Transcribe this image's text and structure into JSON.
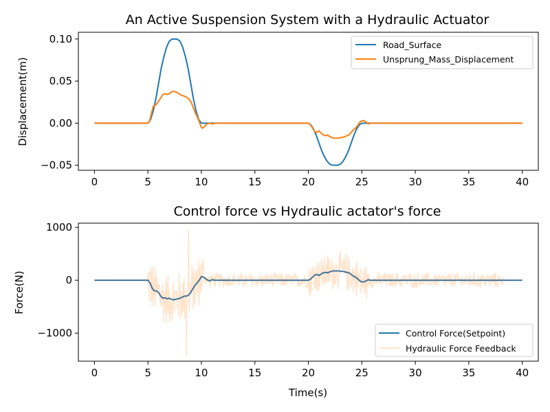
{
  "chart_data": [
    {
      "type": "line",
      "title": "An Active Suspension System with a Hydraulic Actuator",
      "xlabel": "",
      "ylabel": "Displacement(m)",
      "xlim": [
        -1.5,
        41.5
      ],
      "ylim": [
        -0.056,
        0.108
      ],
      "xticks": [
        0,
        5,
        10,
        15,
        20,
        25,
        30,
        35,
        40
      ],
      "xtick_labels": [
        "0",
        "5",
        "10",
        "15",
        "20",
        "25",
        "30",
        "35",
        "40"
      ],
      "yticks": [
        -0.05,
        0.0,
        0.05,
        0.1
      ],
      "ytick_labels": [
        "−0.05",
        "0.00",
        "0.05",
        "0.10"
      ],
      "grid": false,
      "legend_position": "top-right",
      "series": [
        {
          "name": "Road_Surface",
          "color": "#1f77b4",
          "points": [
            [
              0,
              0
            ],
            [
              5,
              0
            ],
            [
              5.25,
              0.0043
            ],
            [
              5.5,
              0.0146
            ],
            [
              5.75,
              0.0293
            ],
            [
              6,
              0.0476
            ],
            [
              6.25,
              0.0655
            ],
            [
              6.5,
              0.0794
            ],
            [
              6.75,
              0.0904
            ],
            [
              7,
              0.0974
            ],
            [
              7.25,
              0.0998
            ],
            [
              7.5,
              0.1
            ],
            [
              7.75,
              0.0998
            ],
            [
              8,
              0.0974
            ],
            [
              8.25,
              0.0904
            ],
            [
              8.5,
              0.0794
            ],
            [
              8.75,
              0.0655
            ],
            [
              9,
              0.0476
            ],
            [
              9.25,
              0.0293
            ],
            [
              9.5,
              0.0146
            ],
            [
              9.75,
              0.0043
            ],
            [
              10,
              0
            ],
            [
              20,
              0
            ],
            [
              20.25,
              -0.0022
            ],
            [
              20.5,
              -0.0073
            ],
            [
              20.75,
              -0.0147
            ],
            [
              21,
              -0.0238
            ],
            [
              21.25,
              -0.0328
            ],
            [
              21.5,
              -0.0397
            ],
            [
              21.75,
              -0.0452
            ],
            [
              22,
              -0.0487
            ],
            [
              22.25,
              -0.0499
            ],
            [
              22.5,
              -0.05
            ],
            [
              22.75,
              -0.0499
            ],
            [
              23,
              -0.0487
            ],
            [
              23.25,
              -0.0452
            ],
            [
              23.5,
              -0.0397
            ],
            [
              23.75,
              -0.0328
            ],
            [
              24,
              -0.0238
            ],
            [
              24.25,
              -0.0147
            ],
            [
              24.5,
              -0.0073
            ],
            [
              24.75,
              -0.0022
            ],
            [
              25,
              0
            ],
            [
              40,
              0
            ]
          ]
        },
        {
          "name": "Unsprung_Mass_Displacement",
          "color": "#ff7f0e",
          "points": [
            [
              0,
              0
            ],
            [
              5,
              0
            ],
            [
              5.15,
              0.002
            ],
            [
              5.3,
              0.01
            ],
            [
              5.5,
              0.02
            ],
            [
              5.75,
              0.022
            ],
            [
              6,
              0.026
            ],
            [
              6.2,
              0.03
            ],
            [
              6.4,
              0.034
            ],
            [
              6.6,
              0.035
            ],
            [
              6.8,
              0.034
            ],
            [
              7,
              0.035
            ],
            [
              7.2,
              0.037
            ],
            [
              7.4,
              0.038
            ],
            [
              7.6,
              0.037
            ],
            [
              7.8,
              0.036
            ],
            [
              8,
              0.034
            ],
            [
              8.2,
              0.033
            ],
            [
              8.4,
              0.032
            ],
            [
              8.6,
              0.031
            ],
            [
              8.8,
              0.029
            ],
            [
              9,
              0.026
            ],
            [
              9.2,
              0.02
            ],
            [
              9.4,
              0.013
            ],
            [
              9.6,
              0.008
            ],
            [
              9.8,
              0.002
            ],
            [
              9.95,
              -0.004
            ],
            [
              10.1,
              -0.006
            ],
            [
              10.3,
              -0.004
            ],
            [
              10.5,
              -0.001
            ],
            [
              10.8,
              0.0
            ],
            [
              11.0,
              -0.001
            ],
            [
              11.3,
              0.0
            ],
            [
              11.6,
              0.0
            ],
            [
              20,
              0
            ],
            [
              20.2,
              -0.002
            ],
            [
              20.4,
              -0.006
            ],
            [
              20.6,
              -0.01
            ],
            [
              20.8,
              -0.011
            ],
            [
              21.0,
              -0.009
            ],
            [
              21.2,
              -0.012
            ],
            [
              21.4,
              -0.014
            ],
            [
              21.6,
              -0.015
            ],
            [
              21.8,
              -0.014
            ],
            [
              22.0,
              -0.016
            ],
            [
              22.2,
              -0.017
            ],
            [
              22.4,
              -0.018
            ],
            [
              22.6,
              -0.0175
            ],
            [
              22.8,
              -0.018
            ],
            [
              23.0,
              -0.017
            ],
            [
              23.2,
              -0.017
            ],
            [
              23.4,
              -0.016
            ],
            [
              23.6,
              -0.015
            ],
            [
              23.8,
              -0.014
            ],
            [
              24.0,
              -0.011
            ],
            [
              24.2,
              -0.008
            ],
            [
              24.4,
              -0.006
            ],
            [
              24.6,
              -0.003
            ],
            [
              24.8,
              0.001
            ],
            [
              25.0,
              0.003
            ],
            [
              25.2,
              0.003
            ],
            [
              25.4,
              0.001
            ],
            [
              25.6,
              -0.001
            ],
            [
              25.8,
              0.0
            ],
            [
              40,
              0
            ]
          ]
        }
      ]
    },
    {
      "type": "line",
      "title": "Control force vs Hydraulic actator's force",
      "xlabel": "Time(s)",
      "ylabel": "Force(N)",
      "xlim": [
        -1.5,
        41.5
      ],
      "ylim": [
        -1530,
        1080
      ],
      "xticks": [
        0,
        5,
        10,
        15,
        20,
        25,
        30,
        35,
        40
      ],
      "xtick_labels": [
        "0",
        "5",
        "10",
        "15",
        "20",
        "25",
        "30",
        "35",
        "40"
      ],
      "yticks": [
        -1000,
        0,
        1000
      ],
      "ytick_labels": [
        "−1000",
        "0",
        "1000"
      ],
      "grid": false,
      "legend_position": "lower-right",
      "series": [
        {
          "name": "Control Force(Setpoint)",
          "color": "#1f77b4",
          "points": [
            [
              0,
              0
            ],
            [
              5,
              0
            ],
            [
              5.2,
              -50
            ],
            [
              5.4,
              -150
            ],
            [
              5.6,
              -200
            ],
            [
              5.8,
              -200
            ],
            [
              6.0,
              -230
            ],
            [
              6.2,
              -300
            ],
            [
              6.4,
              -340
            ],
            [
              6.6,
              -330
            ],
            [
              6.8,
              -350
            ],
            [
              7.0,
              -340
            ],
            [
              7.2,
              -360
            ],
            [
              7.4,
              -370
            ],
            [
              7.6,
              -360
            ],
            [
              7.8,
              -350
            ],
            [
              8.0,
              -340
            ],
            [
              8.2,
              -320
            ],
            [
              8.4,
              -300
            ],
            [
              8.6,
              -300
            ],
            [
              8.8,
              -280
            ],
            [
              9.0,
              -230
            ],
            [
              9.2,
              -160
            ],
            [
              9.4,
              -100
            ],
            [
              9.6,
              -50
            ],
            [
              9.8,
              0
            ],
            [
              10.0,
              70
            ],
            [
              10.2,
              60
            ],
            [
              10.4,
              30
            ],
            [
              10.6,
              0
            ],
            [
              10.8,
              -10
            ],
            [
              11.0,
              10
            ],
            [
              11.3,
              0
            ],
            [
              12,
              0
            ],
            [
              20,
              0
            ],
            [
              20.2,
              20
            ],
            [
              20.4,
              60
            ],
            [
              20.6,
              100
            ],
            [
              20.8,
              110
            ],
            [
              21.0,
              90
            ],
            [
              21.2,
              120
            ],
            [
              21.4,
              140
            ],
            [
              21.6,
              150
            ],
            [
              21.8,
              140
            ],
            [
              22.0,
              160
            ],
            [
              22.2,
              170
            ],
            [
              22.4,
              180
            ],
            [
              22.6,
              175
            ],
            [
              22.8,
              180
            ],
            [
              23.0,
              170
            ],
            [
              23.2,
              170
            ],
            [
              23.4,
              160
            ],
            [
              23.6,
              150
            ],
            [
              23.8,
              140
            ],
            [
              24.0,
              110
            ],
            [
              24.2,
              80
            ],
            [
              24.4,
              60
            ],
            [
              24.6,
              30
            ],
            [
              24.8,
              -10
            ],
            [
              25.0,
              -30
            ],
            [
              25.2,
              -30
            ],
            [
              25.4,
              -10
            ],
            [
              25.6,
              10
            ],
            [
              25.8,
              0
            ],
            [
              40,
              0
            ]
          ]
        },
        {
          "name": "Hydraulic Force Feedback",
          "color": "#ffe4cc",
          "noise_segments": [
            {
              "x0": 5.0,
              "x1": 10.2,
              "amp": 560
            },
            {
              "x0": 10.2,
              "x1": 20.0,
              "amp": 150
            },
            {
              "x0": 20.0,
              "x1": 25.5,
              "amp": 400
            },
            {
              "x0": 25.5,
              "x1": 38.2,
              "amp": 160
            },
            {
              "x0": 38.2,
              "x1": 40.0,
              "amp": 0
            }
          ],
          "peak_max": 960,
          "peak_min": -1420
        }
      ]
    }
  ]
}
